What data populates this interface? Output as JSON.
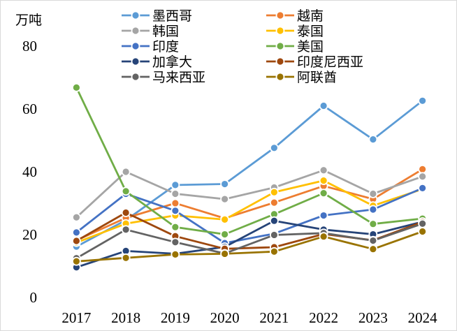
{
  "chart_data": {
    "type": "line",
    "title": "",
    "xlabel": "",
    "ylabel": "万吨",
    "ylim": [
      0,
      80
    ],
    "yticks": [
      0,
      20,
      40,
      60,
      80
    ],
    "grid": false,
    "legend_position": "top",
    "categories": [
      "2017",
      "2018",
      "2019",
      "2020",
      "2021",
      "2022",
      "2023",
      "2024"
    ],
    "series": [
      {
        "name": "墨西哥",
        "color": "#5b9bd5",
        "values": [
          16.2,
          24.6,
          35.8,
          36.1,
          47.6,
          61.0,
          50.3,
          62.6
        ]
      },
      {
        "name": "越南",
        "color": "#ed7d31",
        "values": [
          18.2,
          25.3,
          30.0,
          25.2,
          30.2,
          35.5,
          31.3,
          40.8
        ]
      },
      {
        "name": "韩国",
        "color": "#a5a5a5",
        "values": [
          25.5,
          40.0,
          33.0,
          31.3,
          35.0,
          40.5,
          33.0,
          38.5
        ]
      },
      {
        "name": "泰国",
        "color": "#ffc000",
        "values": [
          17.5,
          23.5,
          26.1,
          24.8,
          33.5,
          37.2,
          29.2,
          34.5
        ]
      },
      {
        "name": "印度",
        "color": "#4472c4",
        "values": [
          20.7,
          33.0,
          27.6,
          17.3,
          20.3,
          26.1,
          28.0,
          34.8
        ]
      },
      {
        "name": "美国",
        "color": "#70ad47",
        "values": [
          66.8,
          33.8,
          22.4,
          20.1,
          26.5,
          33.2,
          23.4,
          25.1
        ]
      },
      {
        "name": "加拿大",
        "color": "#264478",
        "values": [
          9.6,
          14.8,
          13.9,
          16.1,
          24.4,
          21.6,
          20.1,
          24.1
        ]
      },
      {
        "name": "印度尼西亚",
        "color": "#9e480e",
        "values": [
          18.0,
          27.0,
          19.5,
          15.5,
          16.0,
          20.2,
          18.2,
          24.0
        ]
      },
      {
        "name": "马来西亚",
        "color": "#636363",
        "values": [
          12.5,
          21.6,
          17.6,
          14.0,
          19.9,
          20.5,
          18.1,
          23.5
        ]
      },
      {
        "name": "阿联酋",
        "color": "#997300",
        "values": [
          11.5,
          12.6,
          13.7,
          13.9,
          14.6,
          19.4,
          15.4,
          21.0
        ]
      }
    ]
  }
}
